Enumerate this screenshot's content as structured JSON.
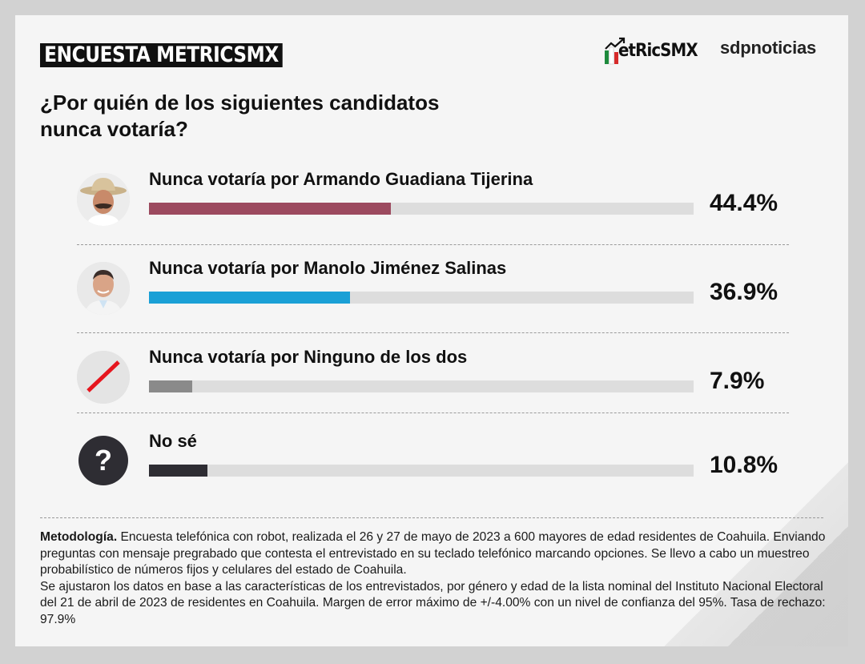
{
  "header": {
    "title": "ENCUESTA METRICSMX",
    "brand_metrics": "etRicSMX",
    "brand_sdp": "sdpnoticias"
  },
  "question": {
    "line1": "¿Por quién de los siguientes candidatos",
    "line2": "nunca votaría?"
  },
  "chart_data": {
    "type": "bar",
    "orientation": "horizontal",
    "categories": [
      "Nunca votaría por Armando Guadiana Tijerina",
      "Nunca votaría por Manolo Jiménez Salinas",
      "Nunca votaría por Ninguno de los dos",
      "No sé"
    ],
    "values": [
      44.4,
      36.9,
      7.9,
      10.8
    ],
    "value_labels": [
      "44.4%",
      "36.9%",
      "7.9%",
      "10.8%"
    ],
    "colors": [
      "#9c4a5f",
      "#1aa0d6",
      "#8a8a8a",
      "#2e2d33"
    ],
    "icons": [
      "candidate-photo-guadiana",
      "candidate-photo-jimenez",
      "slash-icon",
      "question-mark-icon"
    ],
    "ylim": [
      0,
      100
    ]
  },
  "methodology": {
    "label": "Metodología.",
    "text": " Encuesta telefónica con robot, realizada el 26 y 27 de mayo de 2023 a 600 mayores de edad residentes de Coahuila. Enviando preguntas con mensaje pregrabado que contesta el entrevistado en su teclado telefónico marcando opciones. Se llevo a cabo un muestreo probabilístico de números fijos y celulares del estado de Coahuila.",
    "text2": "Se ajustaron los datos en base a las características de los entrevistados, por género y edad de la lista nominal del Instituto Nacional Electoral del 21 de abril de 2023 de residentes en Coahuila. Margen de error máximo de +/-4.00% con un nivel de confianza del 95%. Tasa de rechazo: 97.9%"
  }
}
